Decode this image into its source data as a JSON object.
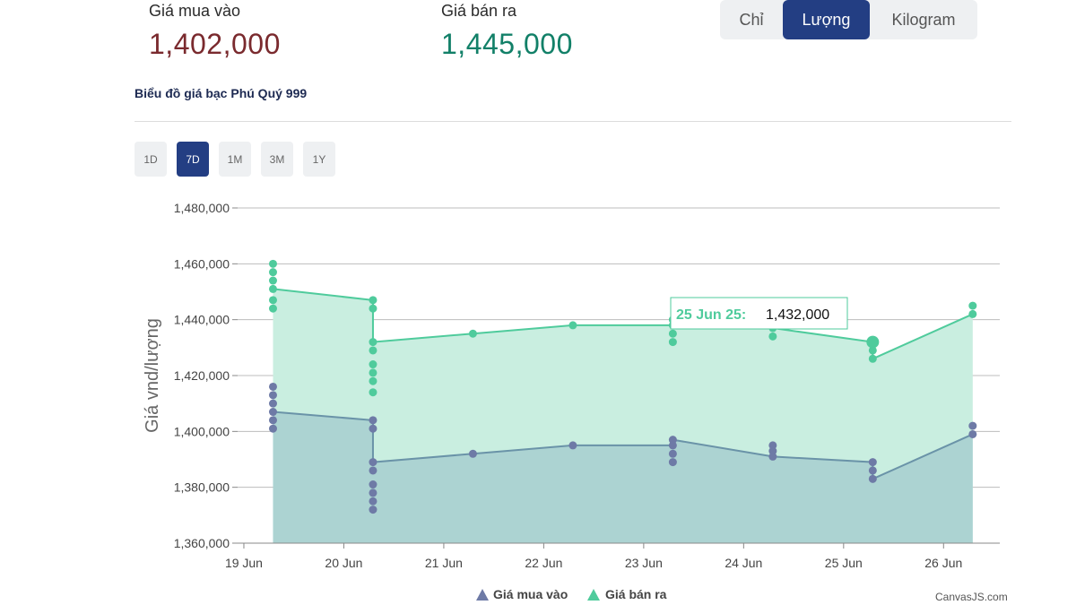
{
  "header": {
    "buy_label": "Giá mua vào",
    "buy_value": "1,402,000",
    "sell_label": "Giá bán ra",
    "sell_value": "1,445,000"
  },
  "unit_tabs": [
    {
      "label": "Chỉ",
      "active": false
    },
    {
      "label": "Lượng",
      "active": true
    },
    {
      "label": "Kilogram",
      "active": false
    }
  ],
  "chart_title": "Biểu đồ giá bạc Phú Quý 999",
  "range_tabs": [
    {
      "label": "1D",
      "active": false
    },
    {
      "label": "7D",
      "active": true
    },
    {
      "label": "1M",
      "active": false
    },
    {
      "label": "3M",
      "active": false
    },
    {
      "label": "1Y",
      "active": false
    }
  ],
  "credit": "CanvasJS.com",
  "colors": {
    "buy": "#6a93a8",
    "buy_marker": "#6e7aa6",
    "buy_fill": "#a9d0d0",
    "sell": "#4fcb9c",
    "sell_fill": "#c9eee0",
    "accent": "#233e83"
  },
  "chart_data": {
    "type": "area",
    "title": "",
    "xlabel": "",
    "ylabel": "Giá vnd/lượng",
    "ylim": [
      1360000,
      1480000
    ],
    "yticks": [
      1360000,
      1380000,
      1400000,
      1420000,
      1440000,
      1460000,
      1480000
    ],
    "ytick_labels": [
      "1,360,000",
      "1,380,000",
      "1,400,000",
      "1,420,000",
      "1,440,000",
      "1,460,000",
      "1,480,000"
    ],
    "xlim": [
      "2025-06-18T22:30",
      "2025-06-26T13:30"
    ],
    "xticks": [
      "2025-06-19",
      "2025-06-20",
      "2025-06-21",
      "2025-06-22",
      "2025-06-23",
      "2025-06-24",
      "2025-06-25",
      "2025-06-26"
    ],
    "xtick_labels": [
      "19 Jun",
      "20 Jun",
      "21 Jun",
      "22 Jun",
      "23 Jun",
      "24 Jun",
      "25 Jun",
      "26 Jun"
    ],
    "grid": true,
    "legend": "bottom-center",
    "series": [
      {
        "name": "Giá mua vào",
        "line": [
          {
            "x": "2025-06-19T07:00",
            "y": 1407000
          },
          {
            "x": "2025-06-20T07:00",
            "y": 1404000
          },
          {
            "x": "2025-06-20T07:00",
            "y": 1389000
          },
          {
            "x": "2025-06-21T07:00",
            "y": 1392000
          },
          {
            "x": "2025-06-22T07:00",
            "y": 1395000
          },
          {
            "x": "2025-06-23T07:00",
            "y": 1395000
          },
          {
            "x": "2025-06-23T07:00",
            "y": 1397000
          },
          {
            "x": "2025-06-24T07:00",
            "y": 1391000
          },
          {
            "x": "2025-06-25T07:00",
            "y": 1389000
          },
          {
            "x": "2025-06-25T07:00",
            "y": 1383000
          },
          {
            "x": "2025-06-26T07:00",
            "y": 1399000
          }
        ],
        "points": [
          {
            "x": "2025-06-19T07:00",
            "y": 1416000
          },
          {
            "x": "2025-06-19T07:00",
            "y": 1413000
          },
          {
            "x": "2025-06-19T07:00",
            "y": 1410000
          },
          {
            "x": "2025-06-19T07:00",
            "y": 1407000
          },
          {
            "x": "2025-06-19T07:00",
            "y": 1404000
          },
          {
            "x": "2025-06-19T07:00",
            "y": 1401000
          },
          {
            "x": "2025-06-20T07:00",
            "y": 1404000
          },
          {
            "x": "2025-06-20T07:00",
            "y": 1401000
          },
          {
            "x": "2025-06-20T07:00",
            "y": 1389000
          },
          {
            "x": "2025-06-20T07:00",
            "y": 1386000
          },
          {
            "x": "2025-06-20T07:00",
            "y": 1381000
          },
          {
            "x": "2025-06-20T07:00",
            "y": 1378000
          },
          {
            "x": "2025-06-20T07:00",
            "y": 1375000
          },
          {
            "x": "2025-06-20T07:00",
            "y": 1372000
          },
          {
            "x": "2025-06-21T07:00",
            "y": 1392000
          },
          {
            "x": "2025-06-22T07:00",
            "y": 1395000
          },
          {
            "x": "2025-06-23T07:00",
            "y": 1397000
          },
          {
            "x": "2025-06-23T07:00",
            "y": 1395000
          },
          {
            "x": "2025-06-23T07:00",
            "y": 1392000
          },
          {
            "x": "2025-06-23T07:00",
            "y": 1389000
          },
          {
            "x": "2025-06-24T07:00",
            "y": 1395000
          },
          {
            "x": "2025-06-24T07:00",
            "y": 1393000
          },
          {
            "x": "2025-06-24T07:00",
            "y": 1391000
          },
          {
            "x": "2025-06-25T07:00",
            "y": 1389000
          },
          {
            "x": "2025-06-25T07:00",
            "y": 1386000
          },
          {
            "x": "2025-06-25T07:00",
            "y": 1383000
          },
          {
            "x": "2025-06-26T07:00",
            "y": 1402000
          },
          {
            "x": "2025-06-26T07:00",
            "y": 1399000
          }
        ]
      },
      {
        "name": "Giá bán ra",
        "line": [
          {
            "x": "2025-06-19T07:00",
            "y": 1451000
          },
          {
            "x": "2025-06-20T07:00",
            "y": 1447000
          },
          {
            "x": "2025-06-20T07:00",
            "y": 1432000
          },
          {
            "x": "2025-06-21T07:00",
            "y": 1435000
          },
          {
            "x": "2025-06-22T07:00",
            "y": 1438000
          },
          {
            "x": "2025-06-23T07:00",
            "y": 1438000
          },
          {
            "x": "2025-06-23T07:00",
            "y": 1440000
          },
          {
            "x": "2025-06-24T07:00",
            "y": 1437000
          },
          {
            "x": "2025-06-25T07:00",
            "y": 1432000
          },
          {
            "x": "2025-06-25T07:00",
            "y": 1426000
          },
          {
            "x": "2025-06-26T07:00",
            "y": 1442000
          }
        ],
        "points": [
          {
            "x": "2025-06-19T07:00",
            "y": 1460000
          },
          {
            "x": "2025-06-19T07:00",
            "y": 1457000
          },
          {
            "x": "2025-06-19T07:00",
            "y": 1454000
          },
          {
            "x": "2025-06-19T07:00",
            "y": 1451000
          },
          {
            "x": "2025-06-19T07:00",
            "y": 1447000
          },
          {
            "x": "2025-06-19T07:00",
            "y": 1444000
          },
          {
            "x": "2025-06-20T07:00",
            "y": 1447000
          },
          {
            "x": "2025-06-20T07:00",
            "y": 1444000
          },
          {
            "x": "2025-06-20T07:00",
            "y": 1432000
          },
          {
            "x": "2025-06-20T07:00",
            "y": 1429000
          },
          {
            "x": "2025-06-20T07:00",
            "y": 1424000
          },
          {
            "x": "2025-06-20T07:00",
            "y": 1421000
          },
          {
            "x": "2025-06-20T07:00",
            "y": 1418000
          },
          {
            "x": "2025-06-20T07:00",
            "y": 1414000
          },
          {
            "x": "2025-06-21T07:00",
            "y": 1435000
          },
          {
            "x": "2025-06-22T07:00",
            "y": 1438000
          },
          {
            "x": "2025-06-23T07:00",
            "y": 1440000
          },
          {
            "x": "2025-06-23T07:00",
            "y": 1438000
          },
          {
            "x": "2025-06-23T07:00",
            "y": 1435000
          },
          {
            "x": "2025-06-23T07:00",
            "y": 1432000
          },
          {
            "x": "2025-06-24T07:00",
            "y": 1437000
          },
          {
            "x": "2025-06-24T07:00",
            "y": 1434000
          },
          {
            "x": "2025-06-25T07:00",
            "y": 1432000
          },
          {
            "x": "2025-06-25T07:00",
            "y": 1429000
          },
          {
            "x": "2025-06-25T07:00",
            "y": 1426000
          },
          {
            "x": "2025-06-26T07:00",
            "y": 1445000
          },
          {
            "x": "2025-06-26T07:00",
            "y": 1442000
          }
        ]
      }
    ],
    "tooltip": {
      "label": "25 Jun 25:",
      "value": "1,432,000",
      "series": "Giá bán ra",
      "x": "2025-06-25T07:00",
      "y": 1432000
    }
  }
}
